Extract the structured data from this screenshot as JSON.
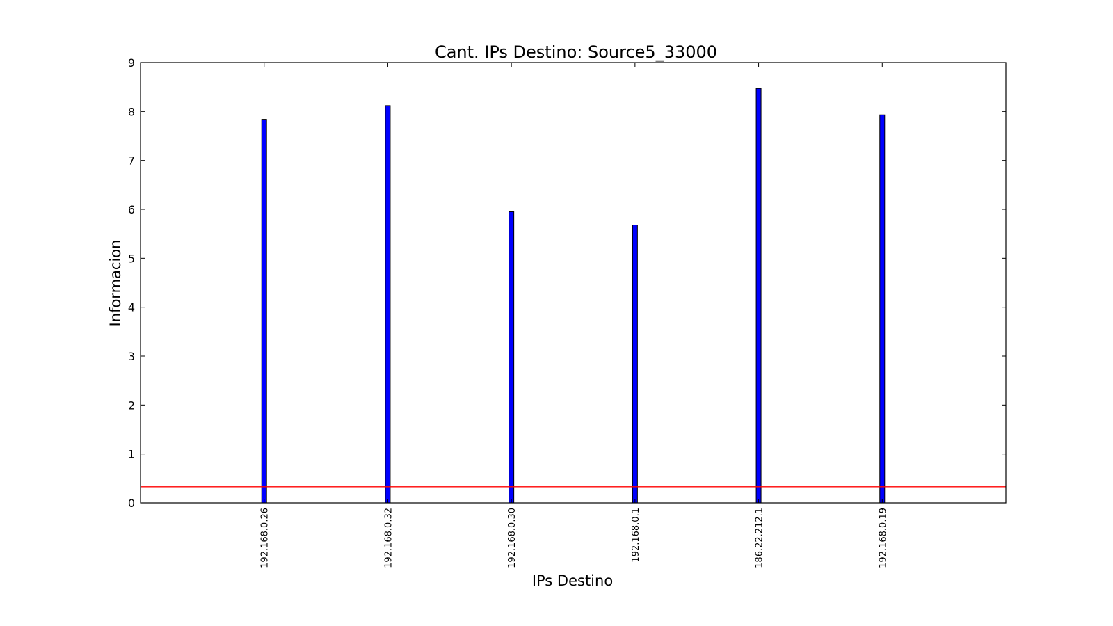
{
  "chart_data": {
    "type": "bar",
    "title": "Cant. IPs Destino: Source5_33000",
    "xlabel": "IPs Destino",
    "ylabel": "Informacion",
    "categories": [
      "192.168.0.26",
      "192.168.0.32",
      "192.168.0.30",
      "192.168.0.1",
      "186.22.212.1",
      "192.168.0.19"
    ],
    "series": [
      {
        "values": [
          7.84,
          8.12,
          5.95,
          5.68,
          8.47,
          7.93
        ]
      }
    ],
    "ylim": [
      0,
      9
    ],
    "yticks": [
      "0",
      "1",
      "2",
      "3",
      "4",
      "5",
      "6",
      "7",
      "8",
      "9"
    ],
    "reference_line": {
      "y": 0.33
    },
    "grid": false,
    "colors": {
      "bar": "#0000ff",
      "bar_edge": "#000000",
      "reference_line": "#ff0000"
    }
  }
}
